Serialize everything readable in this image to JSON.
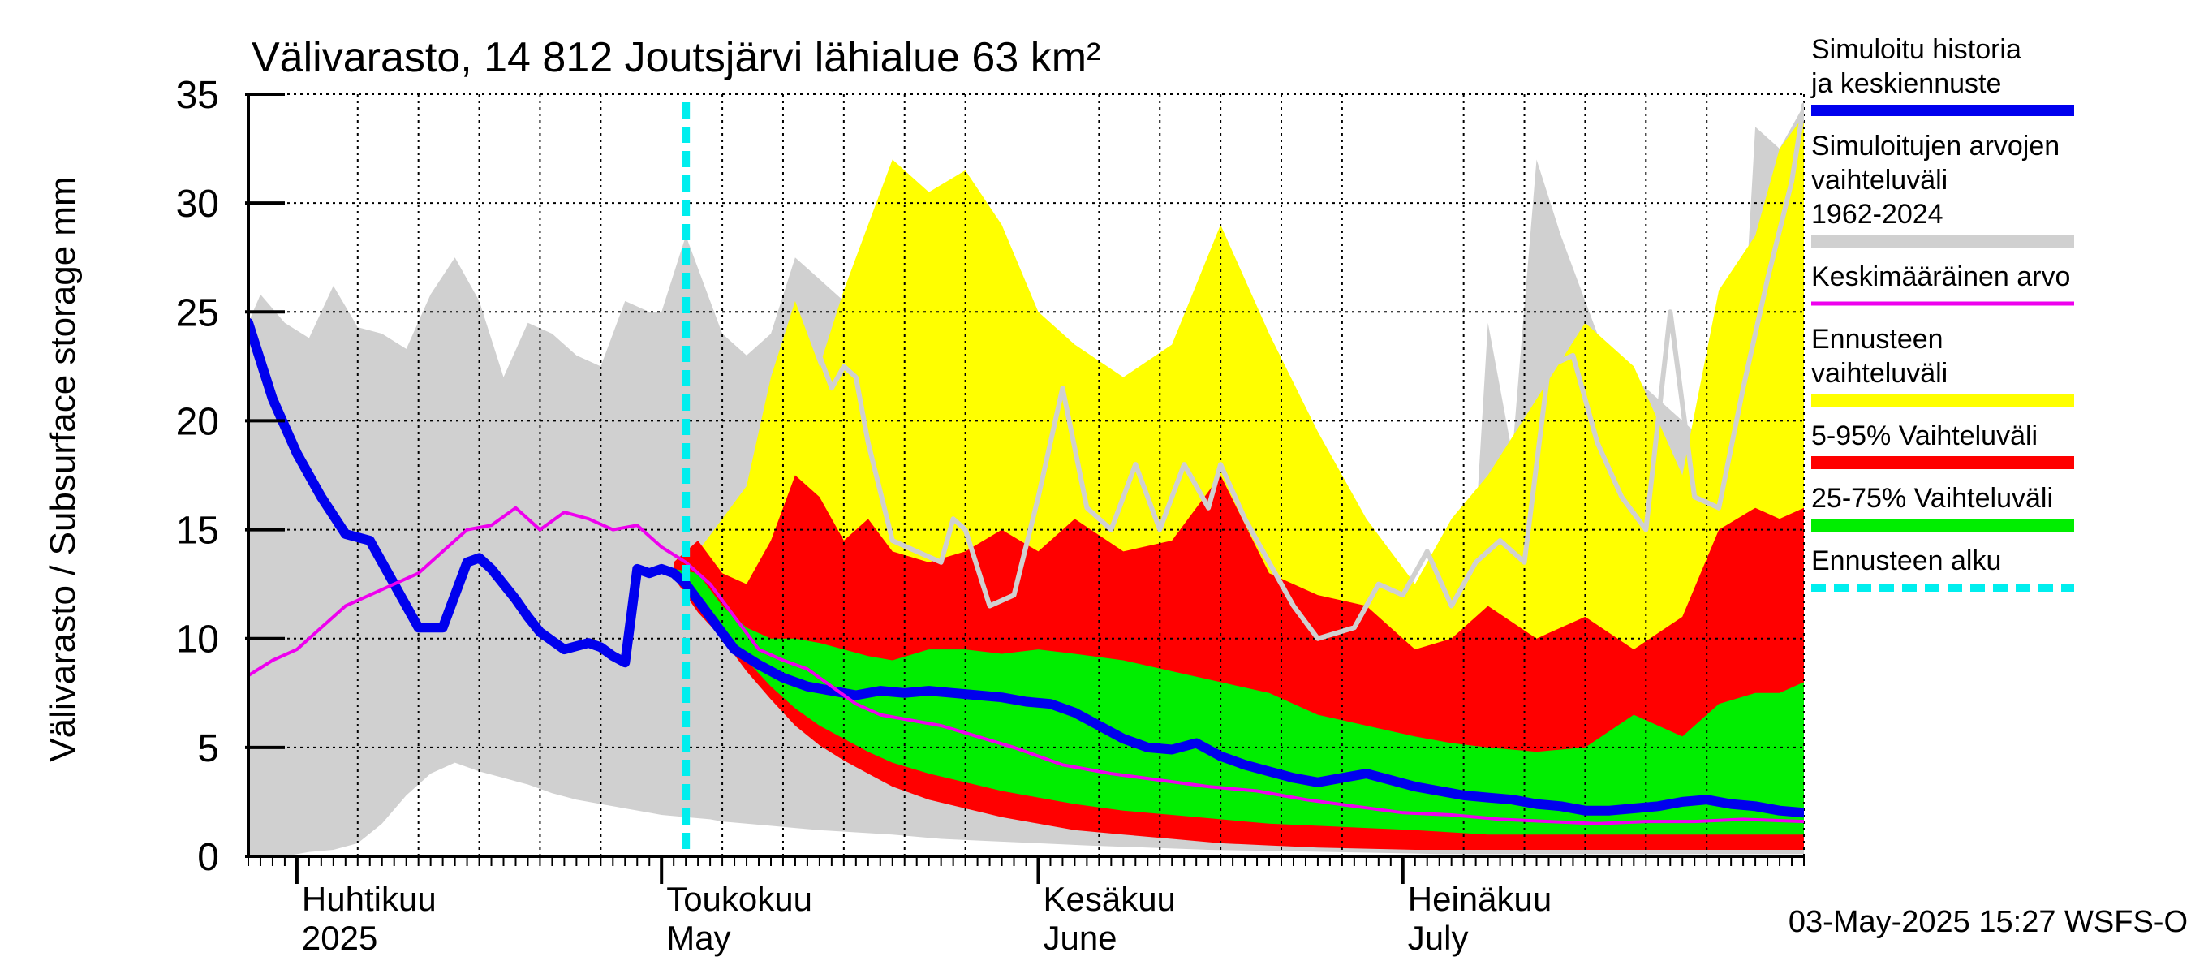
{
  "chart_data": {
    "type": "area",
    "title": "Välivarasto, 14 812 Joutsjärvi lähialue 63 km²",
    "ylabel": "Välivarasto / Subsurface storage  mm",
    "ylim": [
      0,
      35
    ],
    "yticks": [
      0,
      5,
      10,
      15,
      20,
      25,
      30,
      35
    ],
    "xlim": [
      "2025-03-28",
      "2025-08-03"
    ],
    "grid": true,
    "legend_position": "right",
    "month_labels": [
      {
        "date": "2025-04-01",
        "line1": "Huhtikuu",
        "line2": "2025"
      },
      {
        "date": "2025-05-01",
        "line1": "Toukokuu",
        "line2": "May"
      },
      {
        "date": "2025-06-01",
        "line1": "Kesäkuu",
        "line2": "June"
      },
      {
        "date": "2025-07-01",
        "line1": "Heinäkuu",
        "line2": "July"
      }
    ],
    "forecast_start": "2025-05-03",
    "footer": "03-May-2025 15:27 WSFS-O",
    "legend": [
      {
        "label": "Simuloitu historia ja keskiennuste",
        "color": "#0000ee",
        "style": "line"
      },
      {
        "label": "Simuloitujen arvojen vaihteluväli 1962-2024",
        "color": "#d0d0d0",
        "style": "band"
      },
      {
        "label": "Keskimääräinen arvo",
        "color": "#ee00ee",
        "style": "line"
      },
      {
        "label": "Ennusteen vaihteluväli",
        "color": "#ffff00",
        "style": "band"
      },
      {
        "label": "5-95% Vaihteluväli",
        "color": "#ff0000",
        "style": "band"
      },
      {
        "label": "25-75% Vaihteluväli",
        "color": "#00ee00",
        "style": "band"
      },
      {
        "label": "Ennusteen alku",
        "color": "#00eeee",
        "style": "dashed"
      }
    ],
    "series": [
      {
        "name": "Simuloitujen arvojen vaihteluväli 1962-2024",
        "kind": "band",
        "color": "#d0d0d0",
        "x": [
          "2025-03-28",
          "2025-03-29",
          "2025-03-31",
          "2025-04-02",
          "2025-04-04",
          "2025-04-06",
          "2025-04-08",
          "2025-04-10",
          "2025-04-12",
          "2025-04-14",
          "2025-04-16",
          "2025-04-18",
          "2025-04-20",
          "2025-04-22",
          "2025-04-24",
          "2025-04-26",
          "2025-04-28",
          "2025-04-30",
          "2025-05-01",
          "2025-05-03",
          "2025-05-05",
          "2025-05-06",
          "2025-05-08",
          "2025-05-10",
          "2025-05-12",
          "2025-05-14",
          "2025-05-17",
          "2025-05-20",
          "2025-05-22",
          "2025-05-24",
          "2025-05-28",
          "2025-06-01",
          "2025-06-05",
          "2025-06-10",
          "2025-06-15",
          "2025-06-20",
          "2025-06-25",
          "2025-06-30",
          "2025-07-04",
          "2025-07-06",
          "2025-07-08",
          "2025-07-10",
          "2025-07-12",
          "2025-07-14",
          "2025-07-17",
          "2025-07-20",
          "2025-07-25",
          "2025-07-28",
          "2025-07-30",
          "2025-08-01",
          "2025-08-03"
        ],
        "high": [
          24.5,
          25.8,
          24.5,
          23.8,
          26.2,
          24.3,
          24.0,
          23.3,
          25.8,
          27.5,
          25.5,
          22.0,
          24.5,
          24.0,
          23.0,
          22.5,
          25.5,
          25.0,
          25.0,
          28.5,
          25.5,
          24.0,
          23.0,
          24.0,
          27.5,
          26.5,
          25.0,
          20.5,
          16.0,
          12.5,
          8.5,
          5.0,
          3.5,
          2.5,
          2.0,
          1.6,
          1.3,
          1.2,
          1.4,
          6.0,
          24.5,
          18.5,
          32.0,
          28.5,
          24.0,
          22.0,
          19.5,
          14.0,
          33.5,
          32.5,
          34.5
        ],
        "low": [
          0,
          0,
          0,
          0.2,
          0.3,
          0.6,
          1.5,
          2.8,
          3.8,
          4.3,
          3.9,
          3.6,
          3.3,
          2.9,
          2.6,
          2.4,
          2.2,
          2.0,
          1.9,
          1.8,
          1.7,
          1.6,
          1.5,
          1.4,
          1.3,
          1.2,
          1.1,
          1.0,
          0.9,
          0.8,
          0.7,
          0.6,
          0.5,
          0.4,
          0.3,
          0.25,
          0.2,
          0.15,
          0.1,
          0.1,
          0.1,
          0.1,
          0.1,
          0.1,
          0.1,
          0.1,
          0.1,
          0.1,
          0.1,
          0.1,
          0.1
        ]
      },
      {
        "name": "Ennusteen vaihteluväli",
        "kind": "band",
        "color": "#ffff00",
        "x": [
          "2025-05-02",
          "2025-05-04",
          "2025-05-06",
          "2025-05-08",
          "2025-05-10",
          "2025-05-12",
          "2025-05-14",
          "2025-05-16",
          "2025-05-18",
          "2025-05-20",
          "2025-05-23",
          "2025-05-26",
          "2025-05-29",
          "2025-06-01",
          "2025-06-04",
          "2025-06-08",
          "2025-06-12",
          "2025-06-16",
          "2025-06-20",
          "2025-06-24",
          "2025-06-28",
          "2025-07-02",
          "2025-07-05",
          "2025-07-08",
          "2025-07-12",
          "2025-07-16",
          "2025-07-20",
          "2025-07-24",
          "2025-07-27",
          "2025-07-30",
          "2025-08-01",
          "2025-08-03"
        ],
        "high": [
          13.5,
          14.0,
          15.5,
          17.0,
          22.0,
          25.5,
          22.5,
          26.0,
          29.0,
          32.0,
          30.5,
          31.5,
          29.0,
          25.0,
          23.5,
          22.0,
          23.5,
          29.0,
          24.0,
          19.5,
          15.5,
          12.5,
          15.5,
          17.5,
          21.0,
          24.5,
          22.5,
          17.5,
          26.0,
          28.5,
          32.5,
          34.0
        ],
        "low": [
          13.0,
          11.5,
          10.2,
          8.8,
          7.5,
          6.4,
          5.5,
          4.8,
          4.1,
          3.6,
          3.0,
          2.5,
          2.1,
          1.8,
          1.5,
          1.2,
          1.0,
          0.8,
          0.65,
          0.5,
          0.45,
          0.4,
          0.35,
          0.3,
          0.3,
          0.3,
          0.3,
          0.3,
          0.3,
          0.3,
          0.3,
          0.3
        ]
      },
      {
        "name": "5-95% Vaihteluväli",
        "kind": "band",
        "color": "#ff0000",
        "x": [
          "2025-05-02",
          "2025-05-04",
          "2025-05-06",
          "2025-05-08",
          "2025-05-10",
          "2025-05-12",
          "2025-05-14",
          "2025-05-16",
          "2025-05-18",
          "2025-05-20",
          "2025-05-23",
          "2025-05-26",
          "2025-05-29",
          "2025-06-01",
          "2025-06-04",
          "2025-06-08",
          "2025-06-12",
          "2025-06-16",
          "2025-06-20",
          "2025-06-24",
          "2025-06-28",
          "2025-07-02",
          "2025-07-05",
          "2025-07-08",
          "2025-07-12",
          "2025-07-16",
          "2025-07-20",
          "2025-07-24",
          "2025-07-27",
          "2025-07-30",
          "2025-08-01",
          "2025-08-03"
        ],
        "high": [
          13.5,
          14.5,
          13.0,
          12.5,
          14.5,
          17.5,
          16.5,
          14.5,
          15.5,
          14.0,
          13.5,
          14.0,
          15.0,
          14.0,
          15.5,
          14.0,
          14.5,
          17.5,
          13.0,
          12.0,
          11.5,
          9.5,
          10.0,
          11.5,
          10.0,
          11.0,
          9.5,
          11.0,
          15.0,
          16.0,
          15.5,
          16.0
        ],
        "low": [
          12.8,
          11.2,
          10.0,
          8.5,
          7.2,
          6.0,
          5.1,
          4.4,
          3.8,
          3.2,
          2.6,
          2.2,
          1.8,
          1.5,
          1.2,
          1.0,
          0.8,
          0.6,
          0.5,
          0.4,
          0.35,
          0.3,
          0.3,
          0.3,
          0.3,
          0.3,
          0.3,
          0.3,
          0.3,
          0.3,
          0.3,
          0.3
        ]
      },
      {
        "name": "25-75% Vaihteluväli",
        "kind": "band",
        "color": "#00ee00",
        "x": [
          "2025-05-02",
          "2025-05-04",
          "2025-05-06",
          "2025-05-08",
          "2025-05-10",
          "2025-05-12",
          "2025-05-14",
          "2025-05-16",
          "2025-05-18",
          "2025-05-20",
          "2025-05-23",
          "2025-05-26",
          "2025-05-29",
          "2025-06-01",
          "2025-06-04",
          "2025-06-08",
          "2025-06-12",
          "2025-06-16",
          "2025-06-20",
          "2025-06-24",
          "2025-06-28",
          "2025-07-02",
          "2025-07-05",
          "2025-07-08",
          "2025-07-12",
          "2025-07-16",
          "2025-07-20",
          "2025-07-24",
          "2025-07-27",
          "2025-07-30",
          "2025-08-01",
          "2025-08-03"
        ],
        "high": [
          13.2,
          13.0,
          11.5,
          10.5,
          10.0,
          10.0,
          9.8,
          9.5,
          9.2,
          9.0,
          9.5,
          9.5,
          9.3,
          9.5,
          9.3,
          9.0,
          8.5,
          8.0,
          7.5,
          6.5,
          6.0,
          5.5,
          5.2,
          5.0,
          4.8,
          5.0,
          6.5,
          5.5,
          7.0,
          7.5,
          7.5,
          8.0
        ],
        "low": [
          12.9,
          11.5,
          10.5,
          9.0,
          7.8,
          6.8,
          6.0,
          5.4,
          4.8,
          4.3,
          3.8,
          3.4,
          3.0,
          2.7,
          2.4,
          2.1,
          1.9,
          1.7,
          1.5,
          1.4,
          1.3,
          1.2,
          1.1,
          1.0,
          1.0,
          1.0,
          1.0,
          1.0,
          1.0,
          1.0,
          1.0,
          1.0
        ]
      },
      {
        "name": "Simuloitujen arvojen vaihteluväli (mediaani)",
        "kind": "line",
        "color": "#d0d0d0",
        "x": [
          "2025-05-14",
          "2025-05-15",
          "2025-05-16",
          "2025-05-17",
          "2025-05-18",
          "2025-05-20",
          "2025-05-22",
          "2025-05-24",
          "2025-05-25",
          "2025-05-26",
          "2025-05-28",
          "2025-05-30",
          "2025-06-01",
          "2025-06-03",
          "2025-06-05",
          "2025-06-07",
          "2025-06-09",
          "2025-06-11",
          "2025-06-13",
          "2025-06-14",
          "2025-06-15",
          "2025-06-16",
          "2025-06-18",
          "2025-06-20",
          "2025-06-22",
          "2025-06-24",
          "2025-06-27",
          "2025-06-29",
          "2025-07-01",
          "2025-07-03",
          "2025-07-05",
          "2025-07-07",
          "2025-07-09",
          "2025-07-11",
          "2025-07-13",
          "2025-07-15",
          "2025-07-17",
          "2025-07-19",
          "2025-07-21",
          "2025-07-23",
          "2025-07-25",
          "2025-07-27",
          "2025-07-29",
          "2025-07-31",
          "2025-08-02",
          "2025-08-03"
        ],
        "values": [
          23.0,
          21.5,
          22.5,
          22.0,
          19.0,
          14.5,
          14.0,
          13.5,
          15.5,
          15.0,
          11.5,
          12.0,
          16.5,
          21.5,
          16.0,
          15.0,
          18.0,
          15.0,
          18.0,
          17.0,
          16.0,
          18.0,
          15.5,
          13.5,
          11.5,
          10.0,
          10.5,
          12.5,
          12.0,
          14.0,
          11.5,
          13.5,
          14.5,
          13.5,
          22.5,
          23.0,
          19.0,
          16.5,
          15.0,
          25.0,
          16.5,
          16.0,
          21.5,
          26.5,
          31.0,
          34.5
        ]
      },
      {
        "name": "Simuloitu historia ja keskiennuste",
        "kind": "line",
        "color": "#0000ee",
        "x": [
          "2025-03-28",
          "2025-03-30",
          "2025-04-01",
          "2025-04-03",
          "2025-04-05",
          "2025-04-07",
          "2025-04-09",
          "2025-04-10",
          "2025-04-11",
          "2025-04-13",
          "2025-04-15",
          "2025-04-16",
          "2025-04-17",
          "2025-04-18",
          "2025-04-19",
          "2025-04-20",
          "2025-04-21",
          "2025-04-23",
          "2025-04-25",
          "2025-04-26",
          "2025-04-27",
          "2025-04-28",
          "2025-04-29",
          "2025-04-30",
          "2025-05-01",
          "2025-05-02",
          "2025-05-03",
          "2025-05-05",
          "2025-05-07",
          "2025-05-09",
          "2025-05-11",
          "2025-05-13",
          "2025-05-15",
          "2025-05-17",
          "2025-05-19",
          "2025-05-21",
          "2025-05-23",
          "2025-05-25",
          "2025-05-27",
          "2025-05-29",
          "2025-05-31",
          "2025-06-02",
          "2025-06-04",
          "2025-06-06",
          "2025-06-08",
          "2025-06-10",
          "2025-06-12",
          "2025-06-14",
          "2025-06-16",
          "2025-06-18",
          "2025-06-20",
          "2025-06-22",
          "2025-06-24",
          "2025-06-26",
          "2025-06-28",
          "2025-06-30",
          "2025-07-02",
          "2025-07-04",
          "2025-07-06",
          "2025-07-08",
          "2025-07-10",
          "2025-07-12",
          "2025-07-14",
          "2025-07-16",
          "2025-07-18",
          "2025-07-20",
          "2025-07-22",
          "2025-07-24",
          "2025-07-26",
          "2025-07-28",
          "2025-07-30",
          "2025-08-01",
          "2025-08-03"
        ],
        "values": [
          24.5,
          21.0,
          18.5,
          16.5,
          14.8,
          14.5,
          12.5,
          11.5,
          10.5,
          10.5,
          13.5,
          13.7,
          13.2,
          12.5,
          11.8,
          11.0,
          10.3,
          9.5,
          9.8,
          9.6,
          9.2,
          8.9,
          13.2,
          13.0,
          13.2,
          13.0,
          12.5,
          11.0,
          9.5,
          8.8,
          8.2,
          7.8,
          7.6,
          7.4,
          7.6,
          7.5,
          7.6,
          7.5,
          7.4,
          7.3,
          7.1,
          7.0,
          6.6,
          6.0,
          5.4,
          5.0,
          4.9,
          5.2,
          4.6,
          4.2,
          3.9,
          3.6,
          3.4,
          3.6,
          3.8,
          3.5,
          3.2,
          3.0,
          2.8,
          2.7,
          2.6,
          2.4,
          2.3,
          2.1,
          2.1,
          2.2,
          2.3,
          2.5,
          2.6,
          2.4,
          2.3,
          2.1,
          2.0
        ]
      },
      {
        "name": "Keskimääräinen arvo",
        "kind": "line",
        "color": "#ee00ee",
        "x": [
          "2025-03-28",
          "2025-03-30",
          "2025-04-01",
          "2025-04-03",
          "2025-04-05",
          "2025-04-07",
          "2025-04-09",
          "2025-04-11",
          "2025-04-13",
          "2025-04-15",
          "2025-04-17",
          "2025-04-19",
          "2025-04-21",
          "2025-04-23",
          "2025-04-25",
          "2025-04-27",
          "2025-04-29",
          "2025-05-01",
          "2025-05-03",
          "2025-05-05",
          "2025-05-07",
          "2025-05-09",
          "2025-05-11",
          "2025-05-13",
          "2025-05-15",
          "2025-05-17",
          "2025-05-19",
          "2025-05-21",
          "2025-05-24",
          "2025-05-27",
          "2025-05-30",
          "2025-06-03",
          "2025-06-07",
          "2025-06-11",
          "2025-06-15",
          "2025-06-19",
          "2025-06-23",
          "2025-06-27",
          "2025-07-01",
          "2025-07-05",
          "2025-07-09",
          "2025-07-13",
          "2025-07-17",
          "2025-07-21",
          "2025-07-25",
          "2025-07-29",
          "2025-08-03"
        ],
        "values": [
          8.3,
          9.0,
          9.5,
          10.5,
          11.5,
          12.0,
          12.5,
          13.0,
          14.0,
          15.0,
          15.2,
          16.0,
          15.0,
          15.8,
          15.5,
          15.0,
          15.2,
          14.2,
          13.5,
          12.5,
          11.0,
          9.5,
          9.0,
          8.6,
          7.8,
          7.0,
          6.5,
          6.3,
          6.0,
          5.5,
          5.0,
          4.2,
          3.8,
          3.5,
          3.2,
          3.0,
          2.6,
          2.3,
          2.0,
          1.9,
          1.7,
          1.6,
          1.5,
          1.6,
          1.6,
          1.7,
          1.6
        ]
      }
    ]
  }
}
